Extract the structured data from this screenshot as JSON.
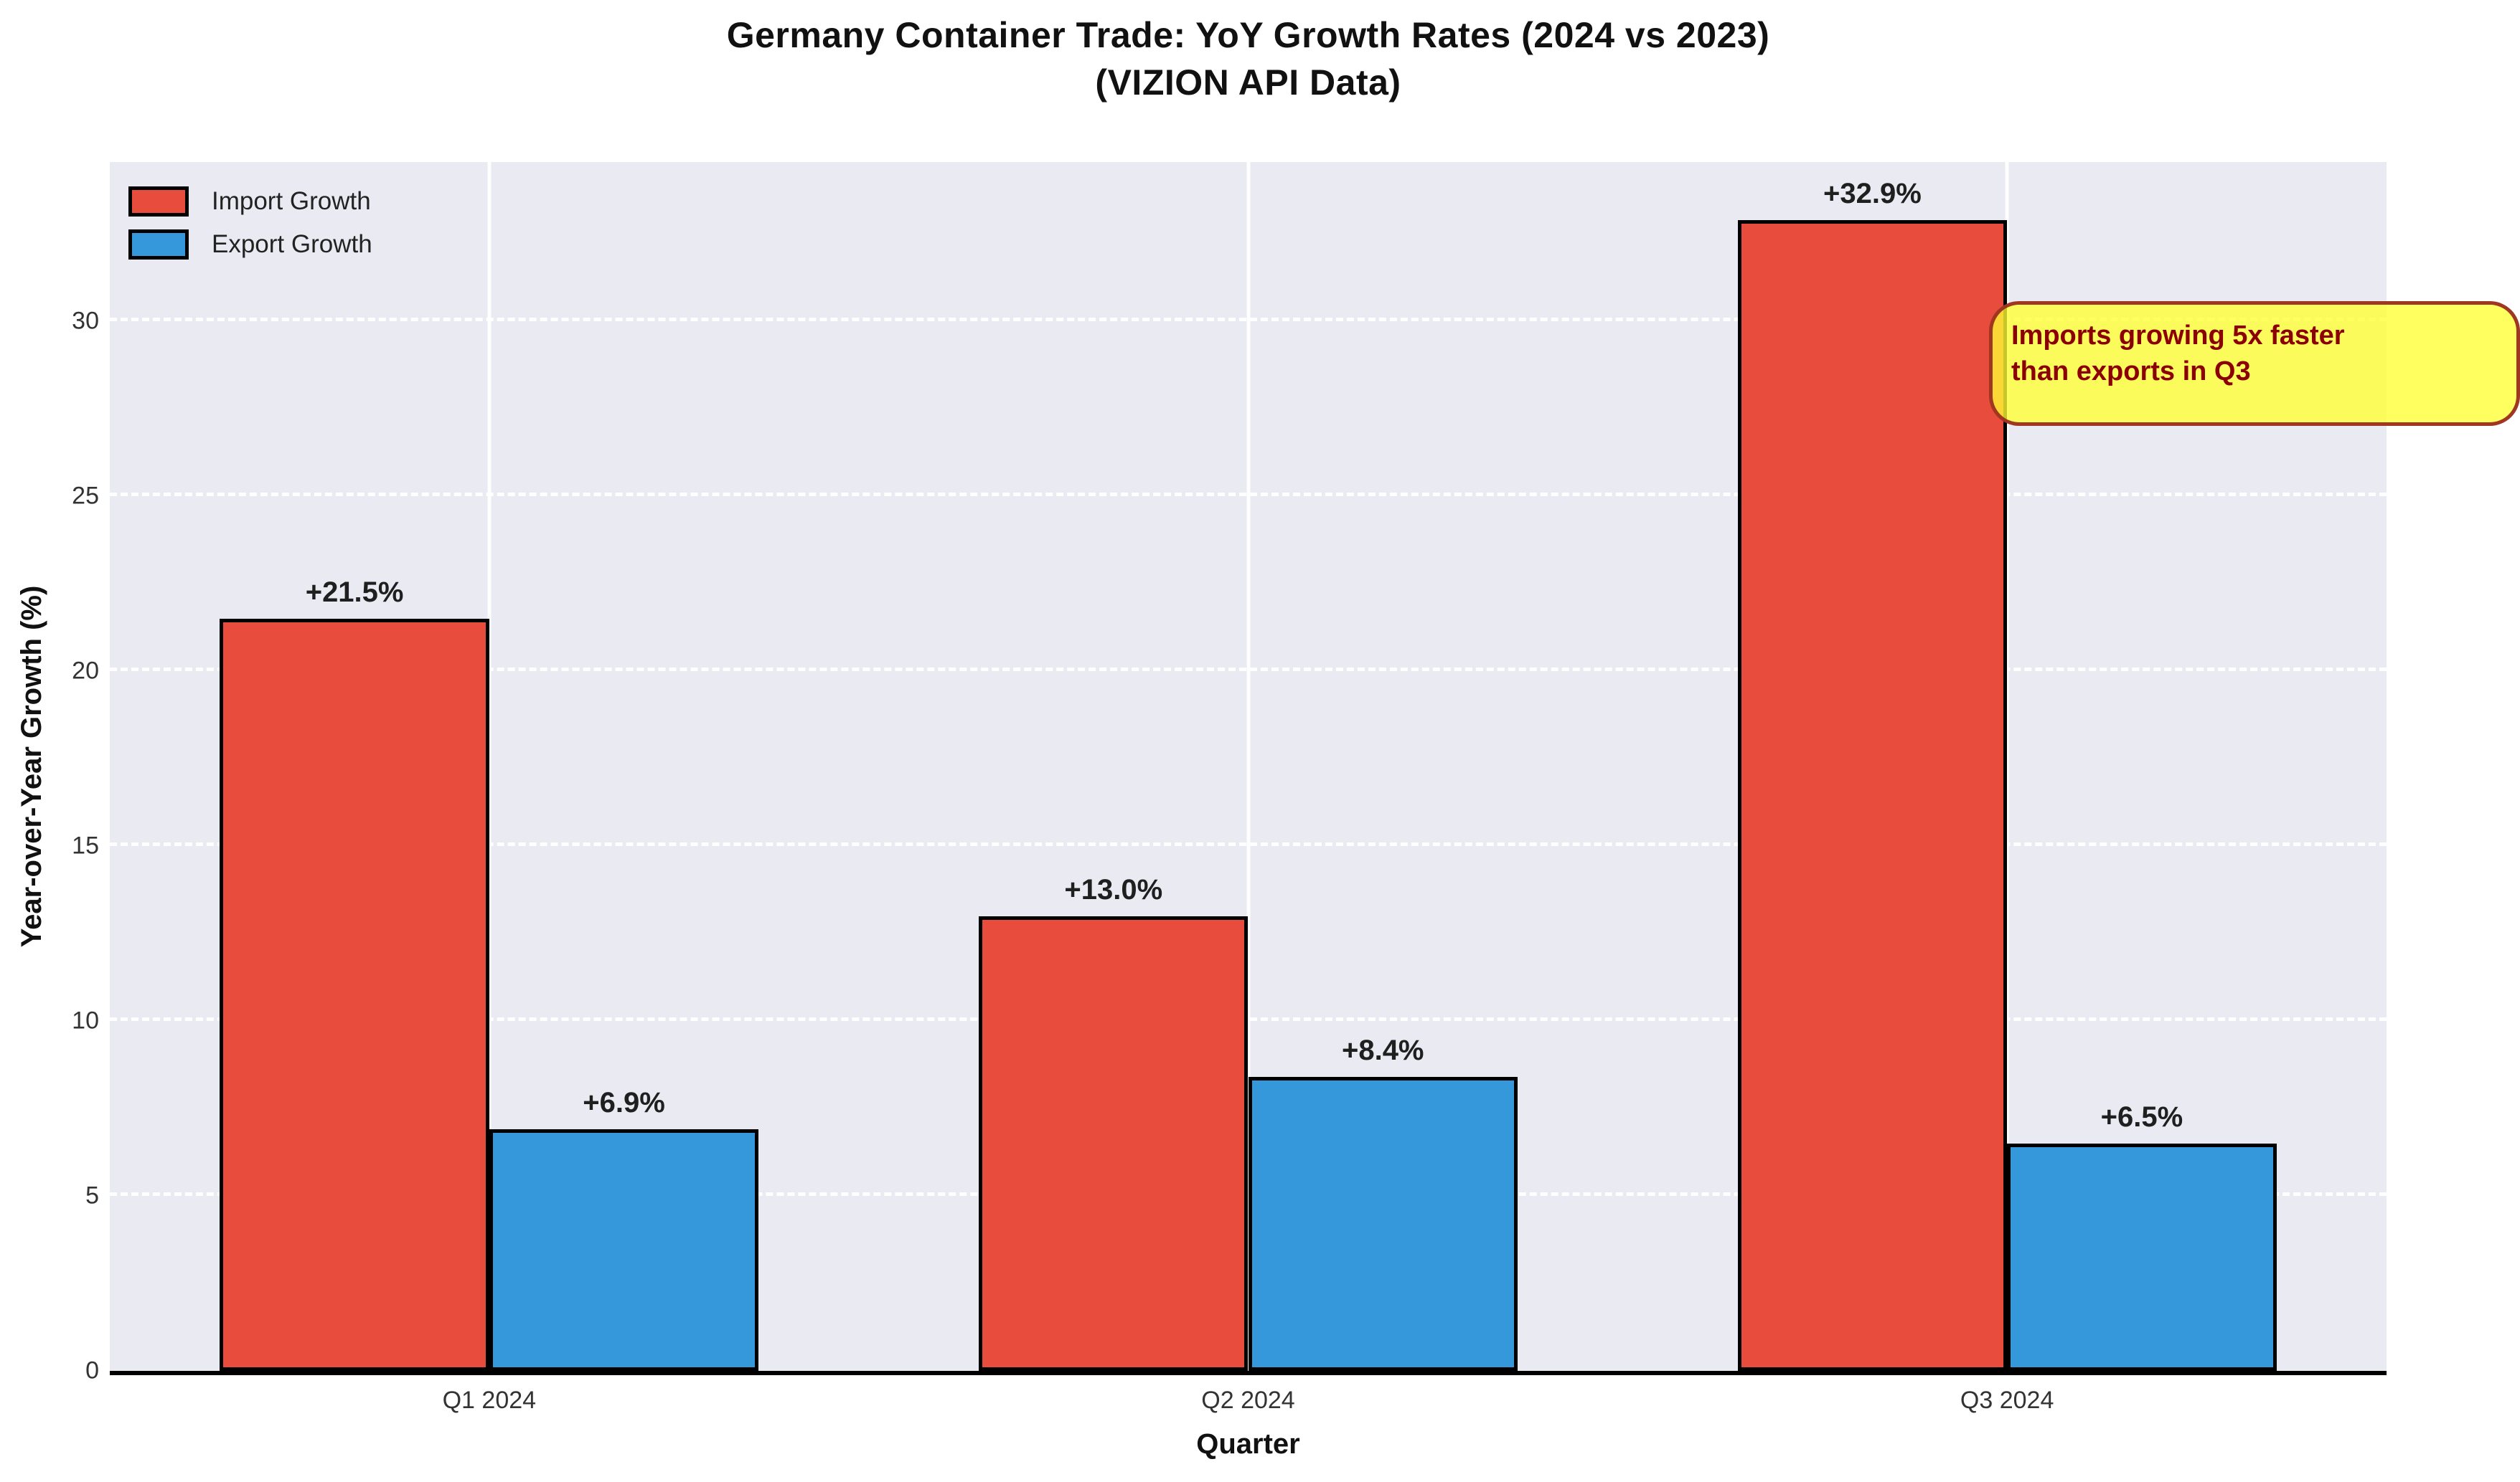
{
  "title": {
    "line1": "Germany Container Trade: YoY Growth Rates (2024 vs 2023)",
    "line2": "(VIZION API Data)"
  },
  "colors": {
    "import_bar": "#e74c3c",
    "export_bar": "#3498db",
    "bar_edge": "#000000",
    "plot_background": "#eaeaf2",
    "gridline": "#ffffff",
    "annotation_background": "#ffff32",
    "annotation_border": "#9b2c20",
    "annotation_text": "#8b0000"
  },
  "chart_data": {
    "type": "bar",
    "title": "Germany Container Trade: YoY Growth Rates (2024 vs 2023)\n(VIZION API Data)",
    "xlabel": "Quarter",
    "ylabel": "Year-over-Year Growth (%)",
    "categories": [
      "Q1 2024",
      "Q2 2024",
      "Q3 2024"
    ],
    "series": [
      {
        "name": "Import Growth",
        "color": "#e74c3c",
        "values": [
          21.5,
          13.0,
          32.9
        ],
        "labels": [
          "+21.5%",
          "+13.0%",
          "+32.9%"
        ]
      },
      {
        "name": "Export Growth",
        "color": "#3498db",
        "values": [
          6.9,
          8.4,
          6.5
        ],
        "labels": [
          "+6.9%",
          "+8.4%",
          "+6.5%"
        ]
      }
    ],
    "ylim": [
      0,
      34.55
    ],
    "yticks": [
      0,
      5,
      10,
      15,
      20,
      25,
      30
    ],
    "grid": true,
    "grid_style": "white dashed horizontal, white solid vertical",
    "legend_position": "upper left"
  },
  "annotation": {
    "line1": "Imports growing 5x faster",
    "line2": "than exports in Q3"
  }
}
